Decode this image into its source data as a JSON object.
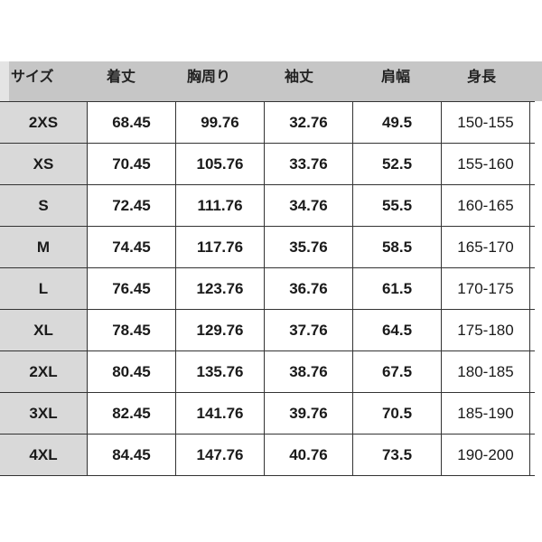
{
  "headers": [
    "サイズ",
    "着丈",
    "胸周り",
    "袖丈",
    "肩幅",
    "身長"
  ],
  "rows": [
    [
      "2XS",
      "68.45",
      "99.76",
      "32.76",
      "49.5",
      "150-155"
    ],
    [
      "XS",
      "70.45",
      "105.76",
      "33.76",
      "52.5",
      "155-160"
    ],
    [
      "S",
      "72.45",
      "111.76",
      "34.76",
      "55.5",
      "160-165"
    ],
    [
      "M",
      "74.45",
      "117.76",
      "35.76",
      "58.5",
      "165-170"
    ],
    [
      "L",
      "76.45",
      "123.76",
      "36.76",
      "61.5",
      "170-175"
    ],
    [
      "XL",
      "78.45",
      "129.76",
      "37.76",
      "64.5",
      "175-180"
    ],
    [
      "2XL",
      "80.45",
      "135.76",
      "38.76",
      "67.5",
      "180-185"
    ],
    [
      "3XL",
      "82.45",
      "141.76",
      "39.76",
      "70.5",
      "185-190"
    ],
    [
      "4XL",
      "84.45",
      "147.76",
      "40.76",
      "73.5",
      "190-200"
    ]
  ]
}
